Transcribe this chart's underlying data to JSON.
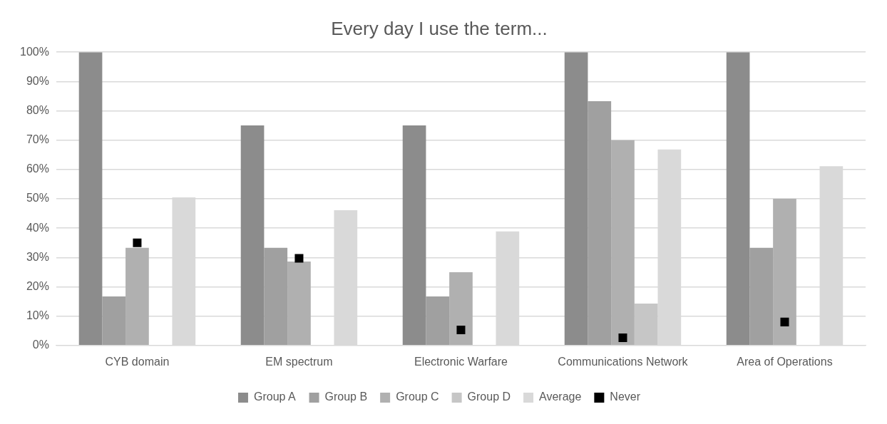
{
  "chart_data": {
    "type": "bar",
    "title": "Every day I use the term...",
    "categories": [
      "CYB domain",
      "EM spectrum",
      "Electronic Warfare",
      "Communications Network",
      "Area of Operations"
    ],
    "series": [
      {
        "name": "Group A",
        "color": "#8c8c8c",
        "values": [
          100,
          75,
          75,
          100,
          100
        ]
      },
      {
        "name": "Group B",
        "color": "#a0a0a0",
        "values": [
          16.7,
          33.3,
          16.7,
          83.3,
          33.3
        ]
      },
      {
        "name": "Group C",
        "color": "#b0b0b0",
        "values": [
          33.3,
          28.6,
          25,
          70,
          50
        ]
      },
      {
        "name": "Group D",
        "color": "#c6c6c6",
        "values": [
          0,
          0,
          0,
          14.3,
          0
        ]
      },
      {
        "name": "Average",
        "color": "#d9d9d9",
        "values": [
          50.5,
          46.1,
          38.9,
          66.8,
          61.1
        ]
      },
      {
        "name": "Never",
        "type": "scatter",
        "marker": "square",
        "color": "#000000",
        "values": [
          35,
          29.7,
          5.3,
          2.6,
          8
        ]
      }
    ],
    "ylim": [
      0,
      100
    ],
    "yticks": [
      {
        "value": 0,
        "label": "0%"
      },
      {
        "value": 10,
        "label": "10%"
      },
      {
        "value": 20,
        "label": "20%"
      },
      {
        "value": 30,
        "label": "30%"
      },
      {
        "value": 40,
        "label": "40%"
      },
      {
        "value": 50,
        "label": "50%"
      },
      {
        "value": 60,
        "label": "60%"
      },
      {
        "value": 70,
        "label": "70%"
      },
      {
        "value": 80,
        "label": "80%"
      },
      {
        "value": 90,
        "label": "90%"
      },
      {
        "value": 100,
        "label": "100%"
      }
    ],
    "grid": "y",
    "legend": "bottom"
  }
}
